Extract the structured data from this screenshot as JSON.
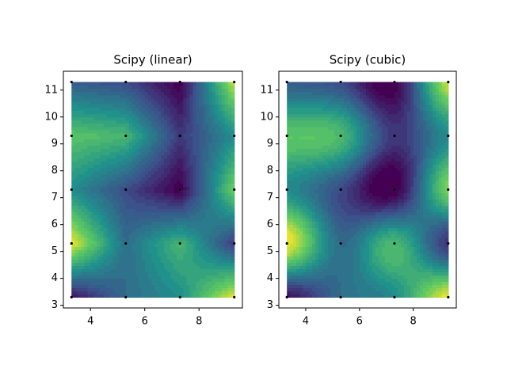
{
  "chart_data": [
    {
      "type": "contour",
      "title": "Scipy (linear)",
      "interpolation": "linear",
      "point_color": "#000000",
      "x": [
        3.3,
        5.3,
        7.3,
        9.3,
        3.3,
        5.3,
        7.3,
        9.3,
        3.3,
        5.3,
        7.3,
        9.3,
        3.3,
        5.3,
        7.3,
        9.3,
        3.3,
        5.3,
        7.3,
        9.3
      ],
      "y": [
        3.3,
        3.3,
        3.3,
        3.3,
        5.3,
        5.3,
        5.3,
        5.3,
        7.3,
        7.3,
        7.3,
        7.3,
        9.3,
        9.3,
        9.3,
        9.3,
        11.3,
        11.3,
        11.3,
        11.3
      ],
      "z": [
        0.2,
        0.45,
        0.55,
        0.95,
        0.95,
        0.45,
        0.7,
        0.3,
        0.55,
        0.35,
        0.15,
        0.8,
        0.75,
        0.7,
        0.3,
        0.55,
        0.4,
        0.35,
        0.15,
        0.9
      ],
      "xlim": [
        3.0,
        9.6
      ],
      "ylim": [
        2.9,
        11.7
      ],
      "xticks": [
        4,
        6,
        8
      ],
      "yticks": [
        3,
        4,
        5,
        6,
        7,
        8,
        9,
        10,
        11
      ]
    },
    {
      "type": "contour",
      "title": "Scipy (cubic)",
      "interpolation": "cubic",
      "point_color": "#000000",
      "x": [
        3.3,
        5.3,
        7.3,
        9.3,
        3.3,
        5.3,
        7.3,
        9.3,
        3.3,
        5.3,
        7.3,
        9.3,
        3.3,
        5.3,
        7.3,
        9.3,
        3.3,
        5.3,
        7.3,
        9.3
      ],
      "y": [
        3.3,
        3.3,
        3.3,
        3.3,
        5.3,
        5.3,
        5.3,
        5.3,
        7.3,
        7.3,
        7.3,
        7.3,
        9.3,
        9.3,
        9.3,
        9.3,
        11.3,
        11.3,
        11.3,
        11.3
      ],
      "z": [
        0.2,
        0.45,
        0.55,
        0.95,
        0.95,
        0.45,
        0.7,
        0.3,
        0.55,
        0.35,
        0.15,
        0.8,
        0.75,
        0.7,
        0.3,
        0.55,
        0.4,
        0.35,
        0.15,
        0.9
      ],
      "xlim": [
        3.0,
        9.6
      ],
      "ylim": [
        2.9,
        11.7
      ],
      "xticks": [
        4,
        6,
        8
      ],
      "yticks": [
        3,
        4,
        5,
        6,
        7,
        8,
        9,
        10,
        11
      ]
    }
  ]
}
